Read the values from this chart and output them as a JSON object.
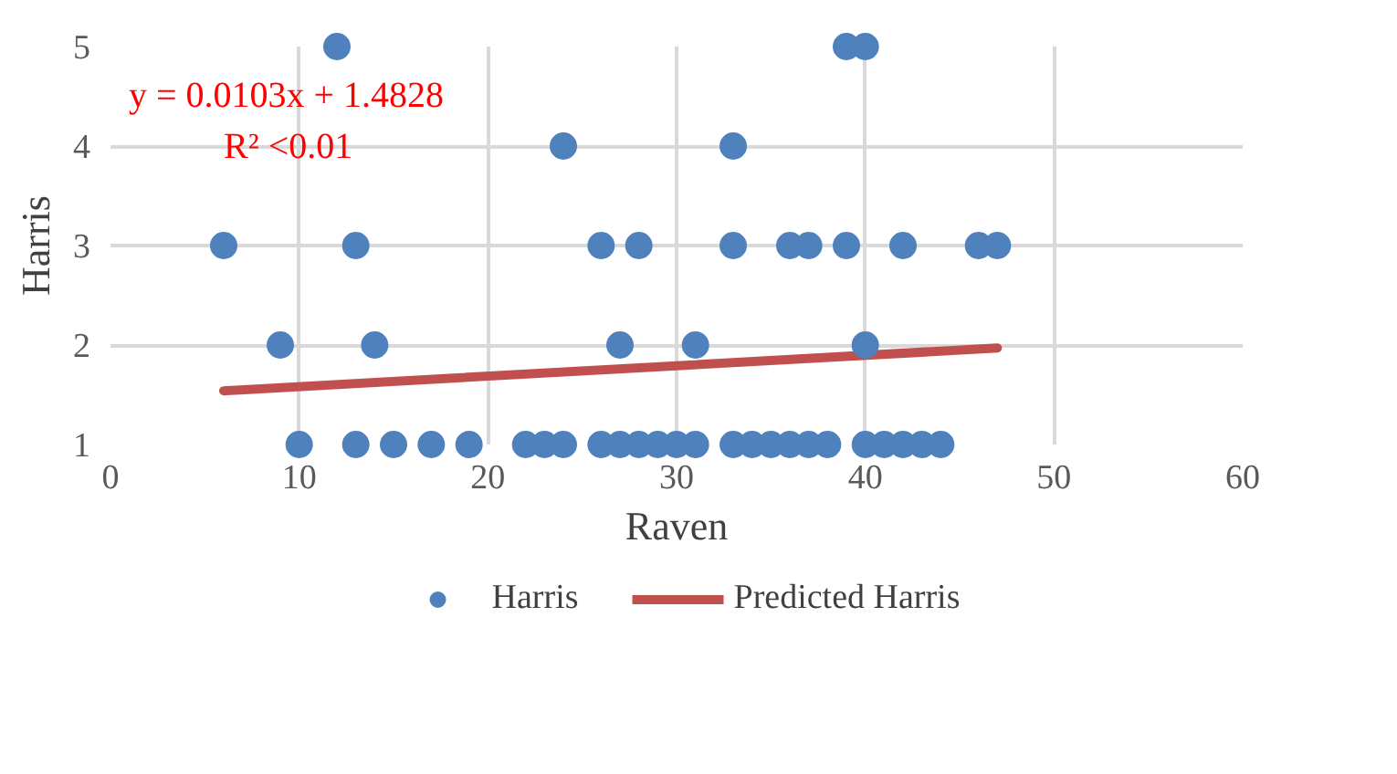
{
  "chart_data": {
    "type": "scatter",
    "xlabel": "Raven",
    "ylabel": "Harris",
    "xlim": [
      0,
      60
    ],
    "xticks": [
      0,
      10,
      20,
      30,
      40,
      50,
      60
    ],
    "ylim": [
      1,
      5
    ],
    "yticks": [
      1,
      2,
      3,
      4,
      5
    ],
    "grid": true,
    "legend": "bottom",
    "annotations": [
      "y = 0.0103x + 1.4828",
      "R² <0.01"
    ],
    "series": [
      {
        "name": "Harris",
        "color": "#4f81bd",
        "marker": "circle",
        "x": [
          12,
          39,
          40,
          24,
          33,
          6,
          13,
          26,
          28,
          33,
          36,
          37,
          39,
          42,
          46,
          47,
          9,
          14,
          27,
          31,
          40,
          10,
          13,
          15,
          17,
          19,
          22,
          23,
          24,
          26,
          27,
          28,
          29,
          30,
          31,
          33,
          34,
          35,
          36,
          37,
          38,
          40,
          41,
          42,
          43,
          44
        ],
        "values": [
          5,
          5,
          5,
          4,
          4,
          3,
          3,
          3,
          3,
          3,
          3,
          3,
          3,
          3,
          3,
          3,
          2,
          2,
          2,
          2,
          2,
          1,
          1,
          1,
          1,
          1,
          1,
          1,
          1,
          1,
          1,
          1,
          1,
          1,
          1,
          1,
          1,
          1,
          1,
          1,
          1,
          1,
          1,
          1,
          1,
          1
        ]
      },
      {
        "name": "Predicted Harris",
        "color": "#c0504d",
        "type": "line",
        "x": [
          6,
          47
        ],
        "values": [
          1.54,
          1.97
        ]
      }
    ]
  }
}
